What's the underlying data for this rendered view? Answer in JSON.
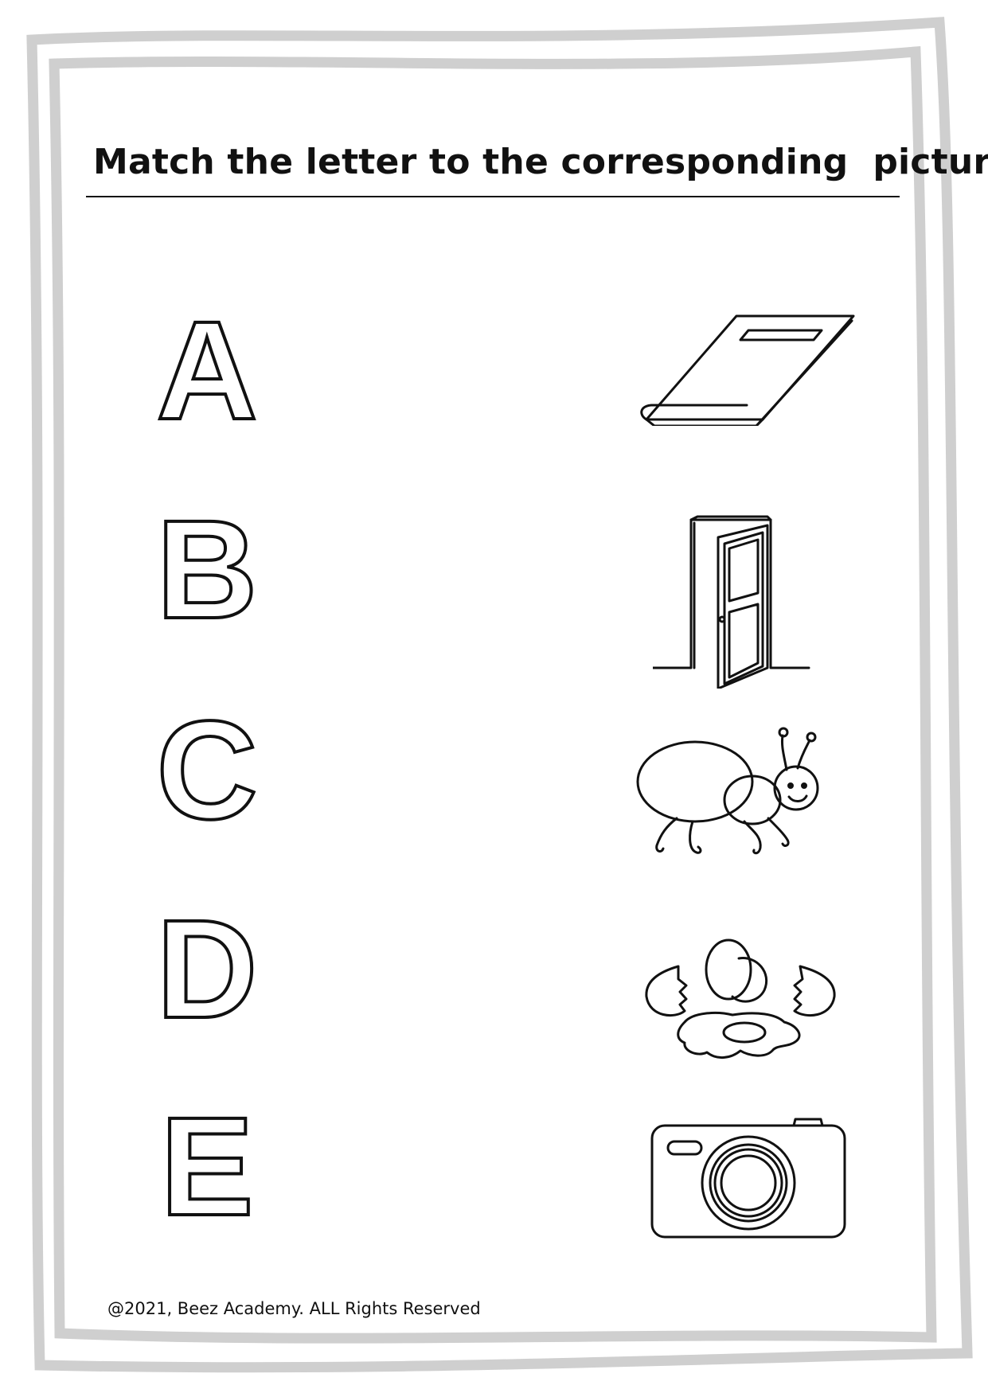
{
  "worksheet": {
    "title": "Match the letter to the corresponding  picture :",
    "letters": [
      "A",
      "B",
      "C",
      "D",
      "E"
    ],
    "pictures": [
      {
        "icon": "book-icon"
      },
      {
        "icon": "door-icon"
      },
      {
        "icon": "ant-icon"
      },
      {
        "icon": "egg-icon"
      },
      {
        "icon": "camera-icon"
      }
    ],
    "footer": "@2021, Beez Academy. ALL Rights Reserved"
  },
  "colors": {
    "frame": "#cfcfcf",
    "ink": "#111111"
  }
}
